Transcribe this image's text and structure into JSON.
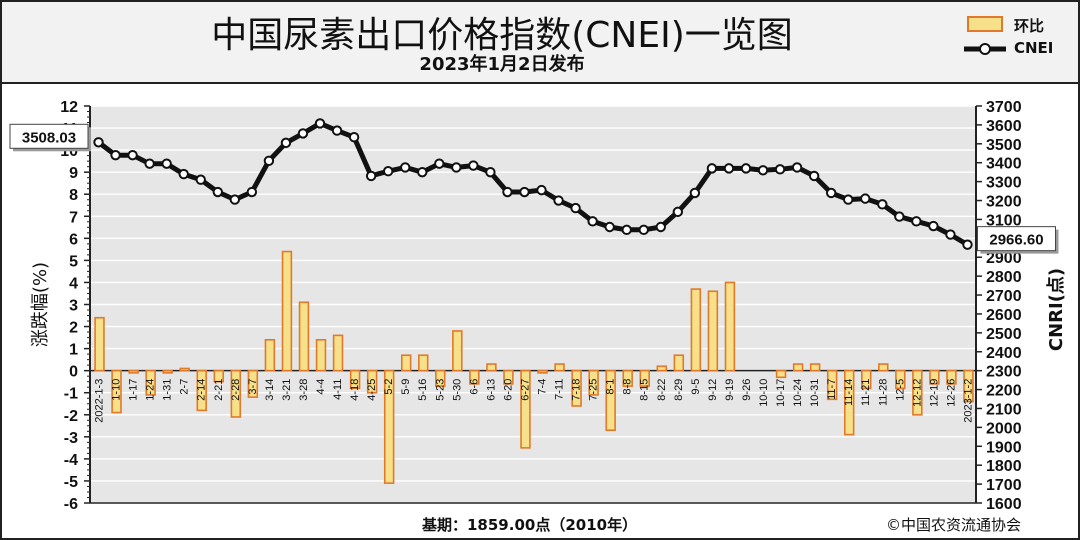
{
  "header": {
    "title": "中国尿素出口价格指数(CNEI)一览图",
    "subtitle": "2023年1月2日发布"
  },
  "legend": {
    "bar_label": "环比",
    "line_label": "CNEI"
  },
  "footer": {
    "base": "基期：1859.00点（2010年）",
    "copyright": "©中国农资流通协会"
  },
  "colors": {
    "bar_fill": "#f7e08a",
    "bar_stroke": "#e07a2a",
    "line": "#111111",
    "marker_fill": "#ffffff",
    "grid": "#c8c8c8",
    "plot_bg": "#e6e6e6"
  },
  "chart_data": {
    "type": "bar+line",
    "categories": [
      "2022-1-3",
      "1-10",
      "1-17",
      "1-24",
      "1-31",
      "2-7",
      "2-14",
      "2-21",
      "2-28",
      "3-7",
      "3-14",
      "3-21",
      "3-28",
      "4-4",
      "4-11",
      "4-18",
      "4-25",
      "5-2",
      "5-9",
      "5-16",
      "5-23",
      "5-30",
      "6-6",
      "6-13",
      "6-20",
      "6-27",
      "7-4",
      "7-11",
      "7-18",
      "7-25",
      "8-1",
      "8-8",
      "8-15",
      "8-22",
      "8-29",
      "9-5",
      "9-12",
      "9-19",
      "9-26",
      "10-10",
      "10-17",
      "10-24",
      "10-31",
      "11-7",
      "11-14",
      "11-21",
      "11-28",
      "12-5",
      "12-12",
      "12-19",
      "12-26",
      "2023-1-2"
    ],
    "series": [
      {
        "name": "环比",
        "type": "bar",
        "axis": "left",
        "values": [
          2.4,
          -1.9,
          -0.1,
          -1.1,
          -0.1,
          0.1,
          -1.8,
          -0.5,
          -2.1,
          -1.2,
          1.4,
          5.4,
          3.1,
          1.4,
          1.6,
          -0.8,
          -1.0,
          -5.1,
          0.7,
          0.7,
          -0.7,
          1.8,
          -0.6,
          0.3,
          -0.6,
          -3.5,
          -0.1,
          0.3,
          -1.6,
          -1.1,
          -2.7,
          -0.7,
          -0.7,
          0.2,
          0.7,
          3.7,
          3.6,
          4.0,
          0.0,
          0.0,
          -0.3,
          0.3,
          0.3,
          -1.3,
          -2.9,
          -0.8,
          0.3,
          -0.8,
          -2.0,
          -0.6,
          -0.6,
          -1.4
        ]
      },
      {
        "name": "CNEI",
        "type": "line",
        "axis": "right",
        "values": [
          3508.03,
          3440,
          3440,
          3395,
          3395,
          3340,
          3310,
          3245,
          3205,
          3245,
          3410,
          3505,
          3555,
          3608,
          3570,
          3535,
          3330,
          3355,
          3375,
          3350,
          3395,
          3375,
          3385,
          3350,
          3245,
          3245,
          3255,
          3200,
          3160,
          3090,
          3060,
          3045,
          3045,
          3060,
          3140,
          3240,
          3370,
          3370,
          3370,
          3360,
          3365,
          3375,
          3330,
          3240,
          3205,
          3210,
          3180,
          3115,
          3090,
          3065,
          3020,
          2966.6
        ]
      }
    ],
    "y_left": {
      "label": "涨跌幅(%)",
      "min": -6,
      "max": 12,
      "ticks": [
        -6,
        -5,
        -4,
        -3,
        -2,
        -1,
        0,
        1,
        2,
        3,
        4,
        5,
        6,
        7,
        8,
        9,
        10,
        11,
        12
      ]
    },
    "y_right": {
      "label": "CNRI(点)",
      "min": 1600,
      "max": 3700,
      "ticks": [
        1600,
        1700,
        1800,
        1900,
        2000,
        2100,
        2200,
        2300,
        2400,
        2500,
        2600,
        2700,
        2800,
        2900,
        3000,
        3100,
        3200,
        3300,
        3400,
        3500,
        3600,
        3700
      ]
    },
    "annotations": [
      {
        "text": "3508.03",
        "point": "first"
      },
      {
        "text": "2966.60",
        "point": "last"
      }
    ],
    "grid": true
  }
}
